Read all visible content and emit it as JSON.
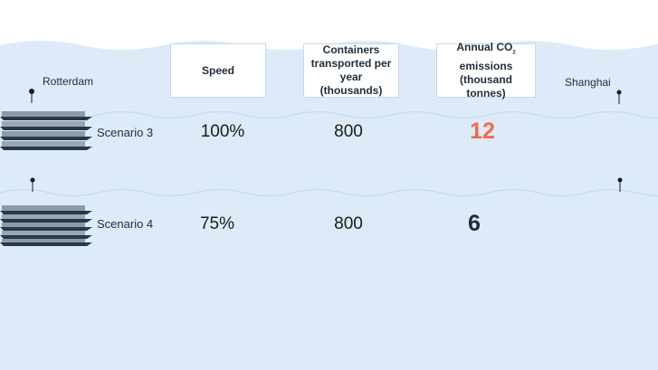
{
  "headers": {
    "speed": "Speed",
    "containers": "Containers transported per year (thousands)",
    "co2_prefix": "Annual CO",
    "co2_subscript": "2",
    "co2_suffix": "emissions (thousand tonnes)"
  },
  "cities": {
    "origin": "Rotterdam",
    "destination": "Shanghai"
  },
  "scenarios": [
    {
      "label": "Scenario 3",
      "speed": "100%",
      "containers": "800",
      "emissions": "12",
      "emissions_color": "#f26a4b"
    },
    {
      "label": "Scenario 4",
      "speed": "75%",
      "containers": "800",
      "emissions": "6",
      "emissions_color": "#1f2d3a"
    }
  ],
  "colors": {
    "sea": "#dcebf7",
    "sea_line": "#c7dced",
    "ship_hull": "#27394a",
    "containers": "#9aa6b1"
  },
  "icons": {
    "ship": "container-ship-icon",
    "pin": "location-pin-icon"
  }
}
